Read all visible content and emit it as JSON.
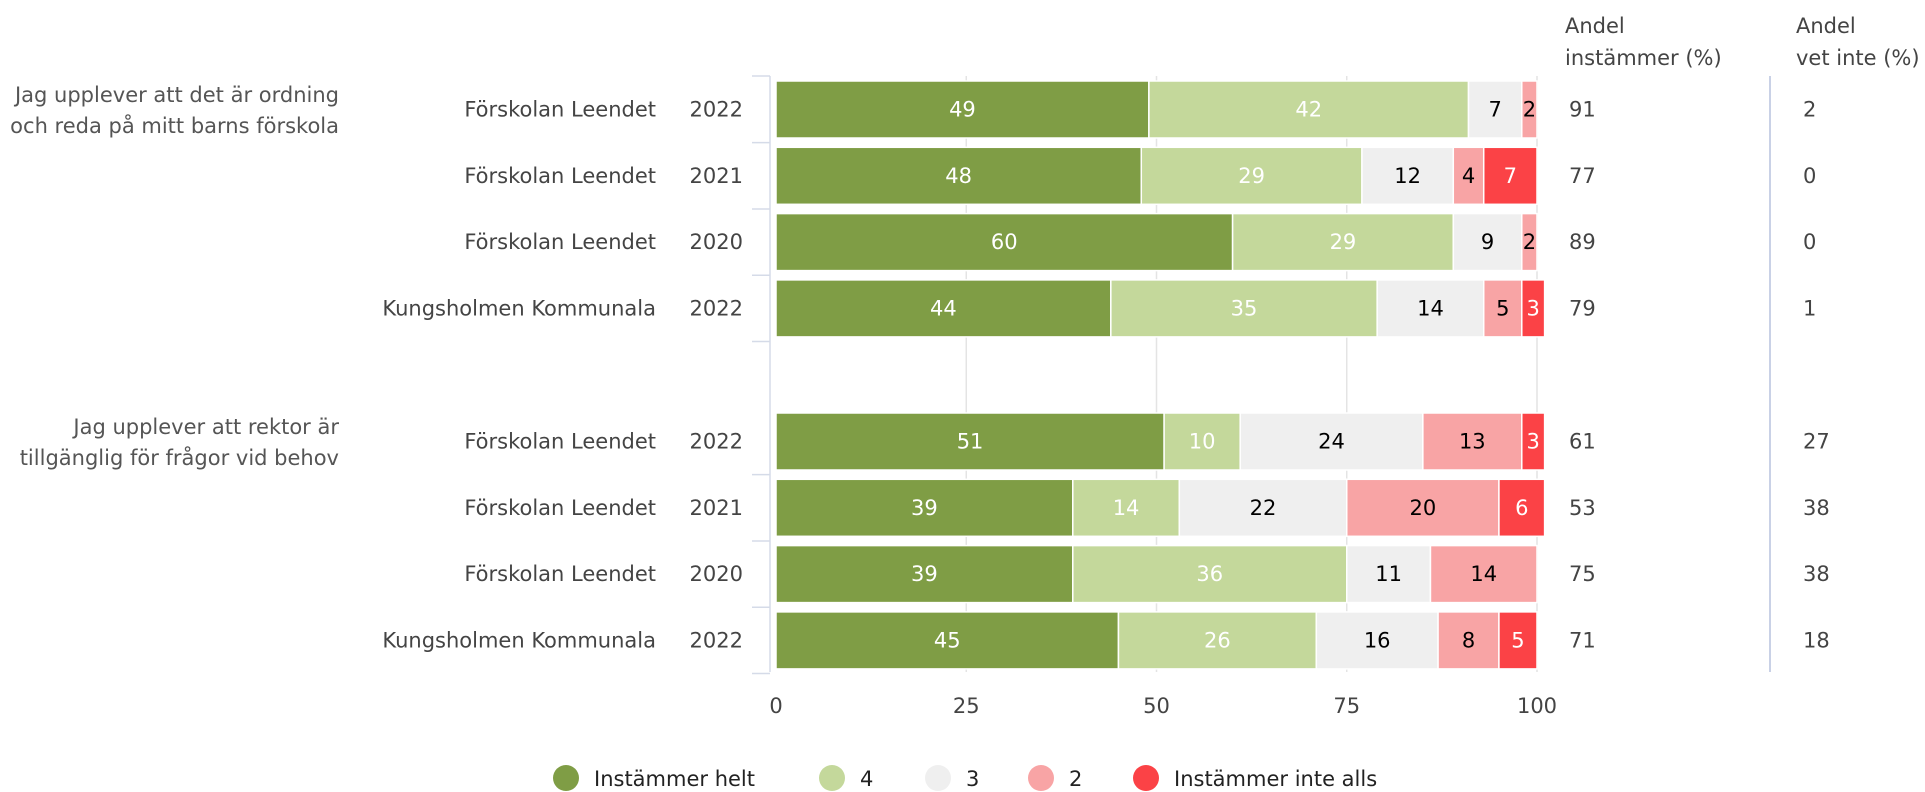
{
  "chart_data": {
    "type": "bar",
    "orientation": "horizontal",
    "stacked": true,
    "xlim": [
      0,
      100
    ],
    "x_ticks": [
      "0",
      "25",
      "50",
      "75",
      "100"
    ],
    "grid": true,
    "legend_position": "bottom",
    "columns": {
      "agree": "Andel instämmer (%)",
      "agree_lines": [
        "Andel",
        "instämmer (%)"
      ],
      "dontknow": "Andel vet inte (%)",
      "dontknow_lines": [
        "Andel",
        "vet inte (%)"
      ]
    },
    "series": [
      {
        "name": "Instämmer helt",
        "color": "#7f9d45",
        "label_color": "#ffffff"
      },
      {
        "name": "4",
        "color": "#c4d89b",
        "label_color": "#ffffff"
      },
      {
        "name": "3",
        "color": "#efefef",
        "label_color": "#000000"
      },
      {
        "name": "2",
        "color": "#f8a4a5",
        "label_color": "#000000"
      },
      {
        "name": "Instämmer inte alls",
        "color": "#fb4246",
        "label_color": "#ffffff"
      }
    ],
    "groups": [
      {
        "question": "Jag upplever att det är ordning och reda på mitt barns förskola",
        "question_lines": [
          "Jag upplever att det är ordning",
          "och reda på mitt barns förskola"
        ],
        "rows": [
          {
            "name": "Förskolan Leendet",
            "year": "2022",
            "values": [
              49,
              42,
              7,
              2,
              0
            ],
            "agree": "91",
            "dontknow": "2"
          },
          {
            "name": "Förskolan Leendet",
            "year": "2021",
            "values": [
              48,
              29,
              12,
              4,
              7
            ],
            "agree": "77",
            "dontknow": "0"
          },
          {
            "name": "Förskolan Leendet",
            "year": "2020",
            "values": [
              60,
              29,
              9,
              2,
              0
            ],
            "agree": "89",
            "dontknow": "0"
          },
          {
            "name": "Kungsholmen Kommunala",
            "year": "2022",
            "values": [
              44,
              35,
              14,
              5,
              3
            ],
            "agree": "79",
            "dontknow": "1"
          }
        ]
      },
      {
        "question": "Jag upplever att rektor är tillgänglig för frågor vid behov",
        "question_lines": [
          "Jag upplever att rektor är",
          "tillgänglig för frågor vid behov"
        ],
        "rows": [
          {
            "name": "Förskolan Leendet",
            "year": "2022",
            "values": [
              51,
              10,
              24,
              13,
              3
            ],
            "agree": "61",
            "dontknow": "27"
          },
          {
            "name": "Förskolan Leendet",
            "year": "2021",
            "values": [
              39,
              14,
              22,
              20,
              6
            ],
            "agree": "53",
            "dontknow": "38"
          },
          {
            "name": "Förskolan Leendet",
            "year": "2020",
            "values": [
              39,
              36,
              11,
              14,
              0
            ],
            "agree": "75",
            "dontknow": "38"
          },
          {
            "name": "Kungsholmen Kommunala",
            "year": "2022",
            "values": [
              45,
              26,
              16,
              8,
              5
            ],
            "agree": "71",
            "dontknow": "18"
          }
        ]
      }
    ]
  }
}
